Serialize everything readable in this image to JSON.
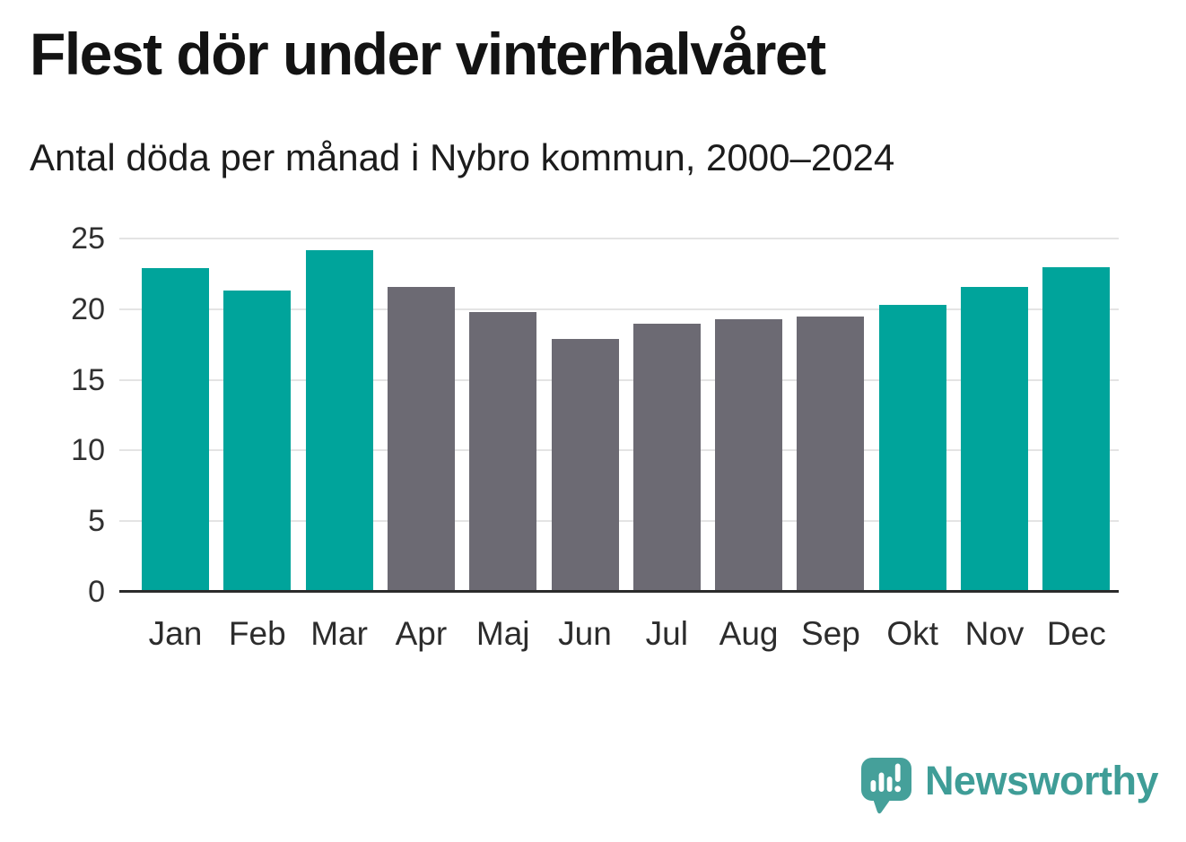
{
  "chart_data": {
    "type": "bar",
    "title": "Flest dör under vinterhalvåret",
    "subtitle": "Antal döda per månad i Nybro kommun, 2000–2024",
    "categories": [
      "Jan",
      "Feb",
      "Mar",
      "Apr",
      "Maj",
      "Jun",
      "Jul",
      "Aug",
      "Sep",
      "Okt",
      "Nov",
      "Dec"
    ],
    "values": [
      22.9,
      21.3,
      24.2,
      21.6,
      19.8,
      17.9,
      19.0,
      19.3,
      19.5,
      20.3,
      21.6,
      23.0
    ],
    "bar_colors": [
      "#00a49b",
      "#00a49b",
      "#00a49b",
      "#6c6a73",
      "#6c6a73",
      "#6c6a73",
      "#6c6a73",
      "#6c6a73",
      "#6c6a73",
      "#00a49b",
      "#00a49b",
      "#00a49b"
    ],
    "xlabel": "",
    "ylabel": "",
    "ylim": [
      0,
      25
    ],
    "yticks": [
      0,
      5,
      10,
      15,
      20,
      25
    ],
    "grid": "horizontal",
    "legend": "none",
    "colors": {
      "highlight": "#00a49b",
      "muted": "#6c6a73",
      "gridline": "#e4e4e4",
      "axis": "#2b2b2b",
      "text": "#131313"
    }
  },
  "footer": {
    "brand": "Newsworthy",
    "brand_color": "#3f9d97",
    "logo_icon": "newsworthy-speech-bubble-bar-chart-icon",
    "logo_color": "#45a09a"
  }
}
